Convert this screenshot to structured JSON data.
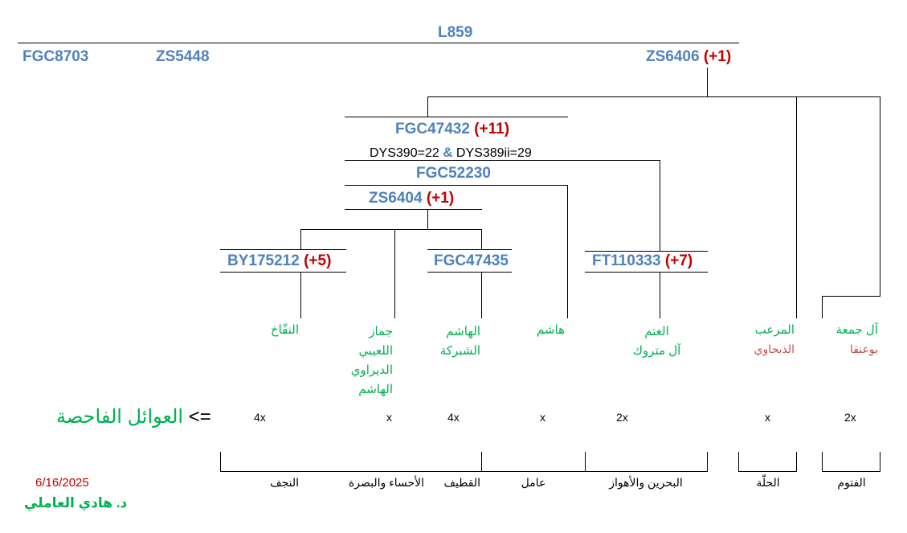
{
  "root": "L859",
  "side_clades": [
    "FGC8703",
    "ZS5448"
  ],
  "zs6406": {
    "name": "ZS6406",
    "plus": "(+1)"
  },
  "fgc47432": {
    "name": "FGC47432",
    "plus": "(+11)",
    "note_a": "DYS390=22",
    "amp": "&",
    "note_b": "DYS389ii=29"
  },
  "fgc52230": "FGC52230",
  "zs6404": {
    "name": "ZS6404",
    "plus": "(+1)"
  },
  "by175212": {
    "name": "BY175212",
    "plus": "(+5)"
  },
  "fgc47435": "FGC47435",
  "ft110333": {
    "name": "FT110333",
    "plus": "(+7)"
  },
  "families": {
    "naffakh": "النفّاخ",
    "jammaz": [
      "جماز",
      "اللعيبي",
      "الديراوي",
      "الهاشم"
    ],
    "hashem_shabraka": [
      "الهاشم",
      "الشبركة"
    ],
    "hashem": "هاشم",
    "ghatam": [
      "الغتم",
      "آل متروك"
    ],
    "mareab": "المرعب",
    "dhabhawi": "الذبحاوي",
    "aljumaa": "آل جمعة",
    "buanqa": "بوعنقا"
  },
  "tested_families_label": "العوائل الفاحصة",
  "arrow": "<=",
  "counts": [
    "4x",
    "x",
    "4x",
    "x",
    "2x",
    "x",
    "2x"
  ],
  "regions": [
    "النجف",
    "الأحساء والبصرة",
    "القطيف",
    "عامل",
    "البحرين والأهواز",
    "الحلّة",
    "الفتوم"
  ],
  "date": "6/16/2025",
  "author": "د. هادي العاملي",
  "colors": {
    "snp": "#4f81bd",
    "plus": "#c00000",
    "family": "#00b050",
    "family_alt": "#c0504d"
  }
}
